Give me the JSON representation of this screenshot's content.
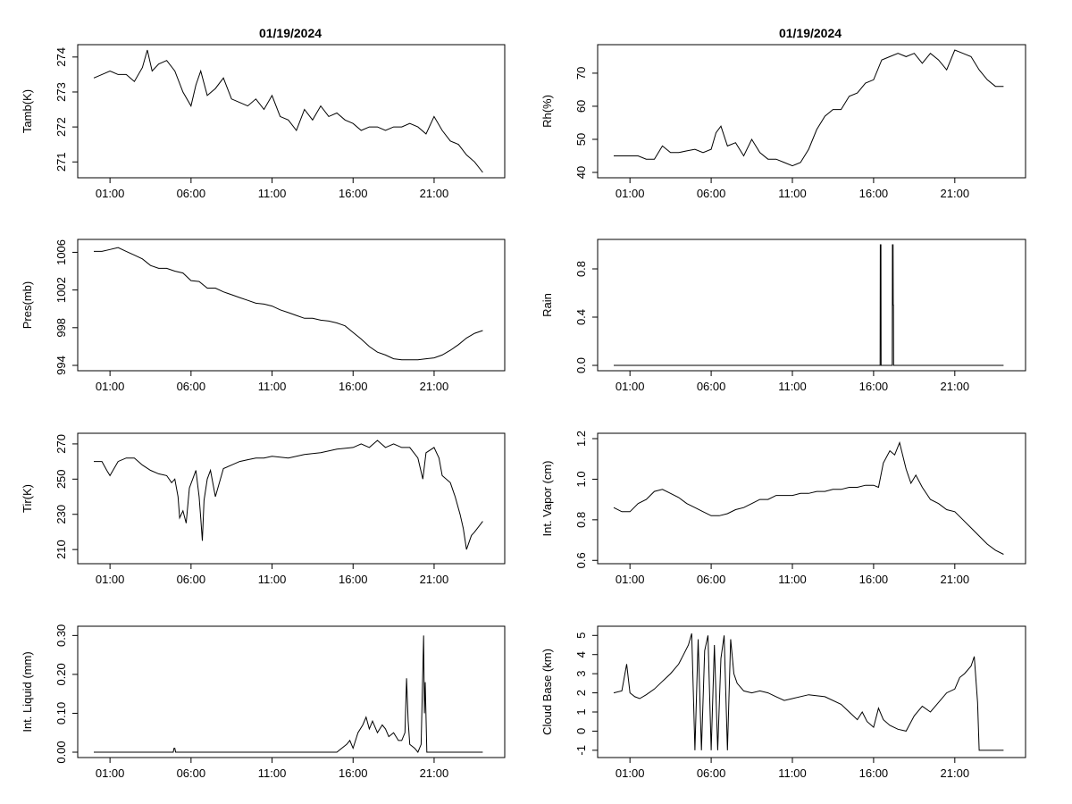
{
  "figure": {
    "col_titles": [
      "01/19/2024",
      "01/19/2024"
    ],
    "x_tick_labels": [
      "01:00",
      "06:00",
      "11:00",
      "16:00",
      "21:00"
    ],
    "x_ticks_hours": [
      1,
      6,
      11,
      16,
      21
    ],
    "x_range_hours": [
      0,
      24
    ]
  },
  "chart_data": [
    {
      "type": "line",
      "title": "01/19/2024",
      "ylabel": "Tamb(K)",
      "ylim": [
        270.7,
        274.2
      ],
      "y_ticks": [
        271,
        272,
        273,
        274
      ],
      "y_tick_labels": [
        "271",
        "272",
        "273",
        "274"
      ],
      "grid": false,
      "series": [
        {
          "x": [
            0,
            0.5,
            1,
            1.5,
            2,
            2.5,
            3,
            3.3,
            3.6,
            4,
            4.5,
            5,
            5.5,
            6,
            6.3,
            6.6,
            7,
            7.5,
            8,
            8.5,
            9,
            9.5,
            10,
            10.5,
            11,
            11.5,
            12,
            12.5,
            13,
            13.5,
            14,
            14.5,
            15,
            15.5,
            16,
            16.5,
            17,
            17.5,
            18,
            18.5,
            19,
            19.5,
            20,
            20.5,
            21,
            21.5,
            22,
            22.5,
            23,
            23.5,
            24
          ],
          "y": [
            273.4,
            273.5,
            273.6,
            273.5,
            273.5,
            273.3,
            273.7,
            274.2,
            273.6,
            273.8,
            273.9,
            273.6,
            273.0,
            272.6,
            273.2,
            273.6,
            272.9,
            273.1,
            273.4,
            272.8,
            272.7,
            272.6,
            272.8,
            272.5,
            272.9,
            272.3,
            272.2,
            271.9,
            272.5,
            272.2,
            272.6,
            272.3,
            272.4,
            272.2,
            272.1,
            271.9,
            272.0,
            272.0,
            271.9,
            272.0,
            272.0,
            272.1,
            272.0,
            271.8,
            272.3,
            271.9,
            271.6,
            271.5,
            271.2,
            271.0,
            270.7
          ]
        }
      ]
    },
    {
      "type": "line",
      "title": "01/19/2024",
      "ylabel": "Rh(%)",
      "ylim": [
        40,
        77
      ],
      "y_ticks": [
        40,
        50,
        60,
        70
      ],
      "y_tick_labels": [
        "40",
        "50",
        "60",
        "70"
      ],
      "grid": false,
      "series": [
        {
          "x": [
            0,
            0.5,
            1,
            1.5,
            2,
            2.5,
            3,
            3.5,
            4,
            4.5,
            5,
            5.5,
            6,
            6.3,
            6.6,
            7,
            7.5,
            8,
            8.5,
            9,
            9.5,
            10,
            10.5,
            11,
            11.5,
            12,
            12.5,
            13,
            13.5,
            14,
            14.5,
            15,
            15.5,
            16,
            16.5,
            17,
            17.5,
            18,
            18.5,
            19,
            19.5,
            20,
            20.5,
            21,
            21.5,
            22,
            22.5,
            23,
            23.5,
            24
          ],
          "y": [
            45,
            45,
            45,
            45,
            44,
            44,
            48,
            46,
            46,
            46.5,
            47,
            46,
            47,
            52,
            54,
            48,
            49,
            45,
            50,
            46,
            44,
            44,
            43,
            42,
            43,
            47,
            53,
            57,
            59,
            59,
            63,
            64,
            67,
            68,
            74,
            75,
            76,
            75,
            76,
            73,
            76,
            74,
            71,
            77,
            76,
            75,
            71,
            68,
            66,
            66
          ]
        }
      ]
    },
    {
      "type": "line",
      "ylabel": "Pres(mb)",
      "ylim": [
        994,
        1006.8
      ],
      "y_ticks": [
        994,
        998,
        1002,
        1006
      ],
      "y_tick_labels": [
        "994",
        "998",
        "1002",
        "1006"
      ],
      "grid": false,
      "series": [
        {
          "x": [
            0,
            0.5,
            1,
            1.5,
            2,
            2.5,
            3,
            3.5,
            4,
            4.5,
            5,
            5.5,
            6,
            6.5,
            7,
            7.5,
            8,
            8.5,
            9,
            9.5,
            10,
            10.5,
            11,
            11.5,
            12,
            12.5,
            13,
            13.5,
            14,
            14.5,
            15,
            15.5,
            16,
            16.5,
            17,
            17.5,
            18,
            18.5,
            19,
            19.5,
            20,
            20.5,
            21,
            21.5,
            22,
            22.5,
            23,
            23.5,
            24
          ],
          "y": [
            1006.1,
            1006.1,
            1006.3,
            1006.5,
            1006.1,
            1005.7,
            1005.3,
            1004.6,
            1004.3,
            1004.3,
            1004.0,
            1003.8,
            1003.0,
            1002.9,
            1002.2,
            1002.2,
            1001.8,
            1001.5,
            1001.2,
            1000.9,
            1000.6,
            1000.5,
            1000.3,
            999.9,
            999.6,
            999.3,
            999.0,
            999.0,
            998.8,
            998.7,
            998.5,
            998.2,
            997.5,
            996.8,
            996.0,
            995.4,
            995.1,
            994.7,
            994.6,
            994.6,
            994.6,
            994.7,
            994.8,
            995.1,
            995.6,
            996.2,
            996.9,
            997.4,
            997.7
          ]
        }
      ]
    },
    {
      "type": "line",
      "ylabel": "Rain",
      "ylim": [
        0,
        1.0
      ],
      "y_ticks": [
        0,
        0.4,
        0.8
      ],
      "y_tick_labels": [
        "0.0",
        "0.4",
        "0.8"
      ],
      "grid": false,
      "series": [
        {
          "x": [
            0,
            16.4,
            16.41,
            16.45,
            16.46,
            17.15,
            17.16,
            17.2,
            17.21,
            17.22,
            17.23,
            24.5
          ],
          "y": [
            0,
            0,
            1.0,
            1.0,
            0,
            0,
            1.0,
            1.0,
            0.5,
            0.5,
            0,
            0
          ]
        }
      ]
    },
    {
      "type": "line",
      "ylabel": "Tir(K)",
      "ylim": [
        205,
        273
      ],
      "y_ticks": [
        210,
        230,
        250,
        270
      ],
      "y_tick_labels": [
        "210",
        "230",
        "250",
        "270"
      ],
      "grid": false,
      "series": [
        {
          "x": [
            0,
            0.5,
            0.8,
            1,
            1.5,
            2,
            2.5,
            3,
            3.5,
            4,
            4.5,
            4.8,
            5,
            5.2,
            5.3,
            5.5,
            5.7,
            5.9,
            6.1,
            6.3,
            6.5,
            6.6,
            6.7,
            6.8,
            7,
            7.2,
            7.5,
            8,
            8.5,
            9,
            9.5,
            10,
            10.5,
            11,
            12,
            13,
            14,
            15,
            16,
            16.5,
            17,
            17.5,
            18,
            18.5,
            19,
            19.5,
            20,
            20.3,
            20.5,
            21,
            21.3,
            21.5,
            22,
            22.3,
            22.6,
            22.8,
            23,
            23.3,
            23.5,
            24
          ],
          "y": [
            260,
            260,
            255,
            252,
            260,
            262,
            262,
            258,
            255,
            253,
            252,
            248,
            250,
            240,
            228,
            232,
            225,
            245,
            250,
            255,
            240,
            228,
            215,
            238,
            250,
            255,
            240,
            256,
            258,
            260,
            261,
            262,
            262,
            263,
            262,
            264,
            265,
            267,
            268,
            270,
            268,
            272,
            268,
            270,
            268,
            268,
            262,
            250,
            265,
            268,
            262,
            252,
            248,
            240,
            230,
            222,
            210,
            218,
            220,
            226
          ]
        }
      ]
    },
    {
      "type": "line",
      "ylabel": "Int. Vapor (cm)",
      "ylim": [
        0.61,
        1.2
      ],
      "y_ticks": [
        0.6,
        0.8,
        1.0,
        1.2
      ],
      "y_tick_labels": [
        "0.6",
        "0.8",
        "1.0",
        "1.2"
      ],
      "grid": false,
      "series": [
        {
          "x": [
            0,
            0.5,
            1,
            1.5,
            2,
            2.5,
            3,
            3.5,
            4,
            4.5,
            5,
            5.5,
            6,
            6.5,
            7,
            7.5,
            8,
            8.5,
            9,
            9.5,
            10,
            10.5,
            11,
            11.5,
            12,
            12.5,
            13,
            13.5,
            14,
            14.5,
            15,
            15.5,
            16,
            16.3,
            16.6,
            17,
            17.3,
            17.6,
            18,
            18.3,
            18.6,
            19,
            19.5,
            20,
            20.5,
            21,
            21.5,
            22,
            22.5,
            23,
            23.5,
            24
          ],
          "y": [
            0.86,
            0.84,
            0.84,
            0.88,
            0.9,
            0.94,
            0.95,
            0.93,
            0.91,
            0.88,
            0.86,
            0.84,
            0.82,
            0.82,
            0.83,
            0.85,
            0.86,
            0.88,
            0.9,
            0.9,
            0.92,
            0.92,
            0.92,
            0.93,
            0.93,
            0.94,
            0.94,
            0.95,
            0.95,
            0.96,
            0.96,
            0.97,
            0.97,
            0.96,
            1.08,
            1.14,
            1.12,
            1.18,
            1.05,
            0.98,
            1.02,
            0.96,
            0.9,
            0.88,
            0.85,
            0.84,
            0.8,
            0.76,
            0.72,
            0.68,
            0.65,
            0.63
          ]
        }
      ]
    },
    {
      "type": "line",
      "ylabel": "Int. Liquid (mm)",
      "ylim": [
        0,
        0.31
      ],
      "y_ticks": [
        0,
        0.1,
        0.2,
        0.3
      ],
      "y_tick_labels": [
        "0.00",
        "0.10",
        "0.20",
        "0.30"
      ],
      "grid": false,
      "series": [
        {
          "x": [
            0,
            4.9,
            4.95,
            5.0,
            5.05,
            15.0,
            15.3,
            15.6,
            15.8,
            16.0,
            16.3,
            16.6,
            16.8,
            17.0,
            17.2,
            17.5,
            17.8,
            18.0,
            18.2,
            18.5,
            18.8,
            19.0,
            19.2,
            19.3,
            19.4,
            19.5,
            19.8,
            20.0,
            20.2,
            20.35,
            20.4,
            20.45,
            20.55,
            21,
            24
          ],
          "y": [
            0,
            0,
            0.01,
            0.01,
            0,
            0,
            0.01,
            0.02,
            0.03,
            0.01,
            0.05,
            0.07,
            0.09,
            0.06,
            0.08,
            0.05,
            0.07,
            0.06,
            0.04,
            0.05,
            0.03,
            0.03,
            0.05,
            0.19,
            0.08,
            0.02,
            0.01,
            0.0,
            0.02,
            0.3,
            0.1,
            0.18,
            0.0,
            0,
            0
          ]
        }
      ]
    },
    {
      "type": "line",
      "ylabel": "Cloud Base (km)",
      "ylim": [
        -1.1,
        5.2
      ],
      "y_ticks": [
        -1,
        0,
        1,
        2,
        3,
        4,
        5
      ],
      "y_tick_labels": [
        "-1",
        "0",
        "1",
        "2",
        "3",
        "4",
        "5"
      ],
      "grid": false,
      "series": [
        {
          "x": [
            0,
            0.5,
            0.8,
            1.0,
            1.3,
            1.6,
            2.0,
            2.5,
            3.0,
            3.5,
            4.0,
            4.3,
            4.6,
            4.8,
            5.0,
            5.2,
            5.4,
            5.6,
            5.8,
            6.0,
            6.2,
            6.4,
            6.6,
            6.8,
            7.0,
            7.2,
            7.4,
            7.6,
            7.8,
            8.0,
            8.5,
            9,
            9.5,
            10,
            10.5,
            11,
            12,
            13,
            14,
            14.5,
            15,
            15.3,
            15.6,
            16,
            16.3,
            16.6,
            17,
            17.5,
            18,
            18.5,
            19,
            19.5,
            20,
            20.5,
            21,
            21.3,
            21.6,
            22,
            22.2,
            22.4,
            22.5,
            23,
            24
          ],
          "y": [
            2.0,
            2.1,
            3.5,
            2.0,
            1.8,
            1.7,
            1.9,
            2.2,
            2.6,
            3.0,
            3.5,
            4.0,
            4.5,
            5.1,
            -1.0,
            4.8,
            -1.0,
            4.2,
            5.0,
            -1.0,
            4.5,
            -1.0,
            3.8,
            5.0,
            -1.0,
            4.8,
            3.0,
            2.5,
            2.3,
            2.1,
            2.0,
            2.1,
            2.0,
            1.8,
            1.6,
            1.7,
            1.9,
            1.8,
            1.4,
            1.0,
            0.6,
            1.0,
            0.5,
            0.2,
            1.2,
            0.6,
            0.3,
            0.1,
            0.0,
            0.8,
            1.3,
            1.0,
            1.5,
            2.0,
            2.2,
            2.8,
            3.0,
            3.4,
            3.9,
            1.5,
            -1.0,
            -1.0,
            -1.0
          ]
        }
      ]
    }
  ]
}
